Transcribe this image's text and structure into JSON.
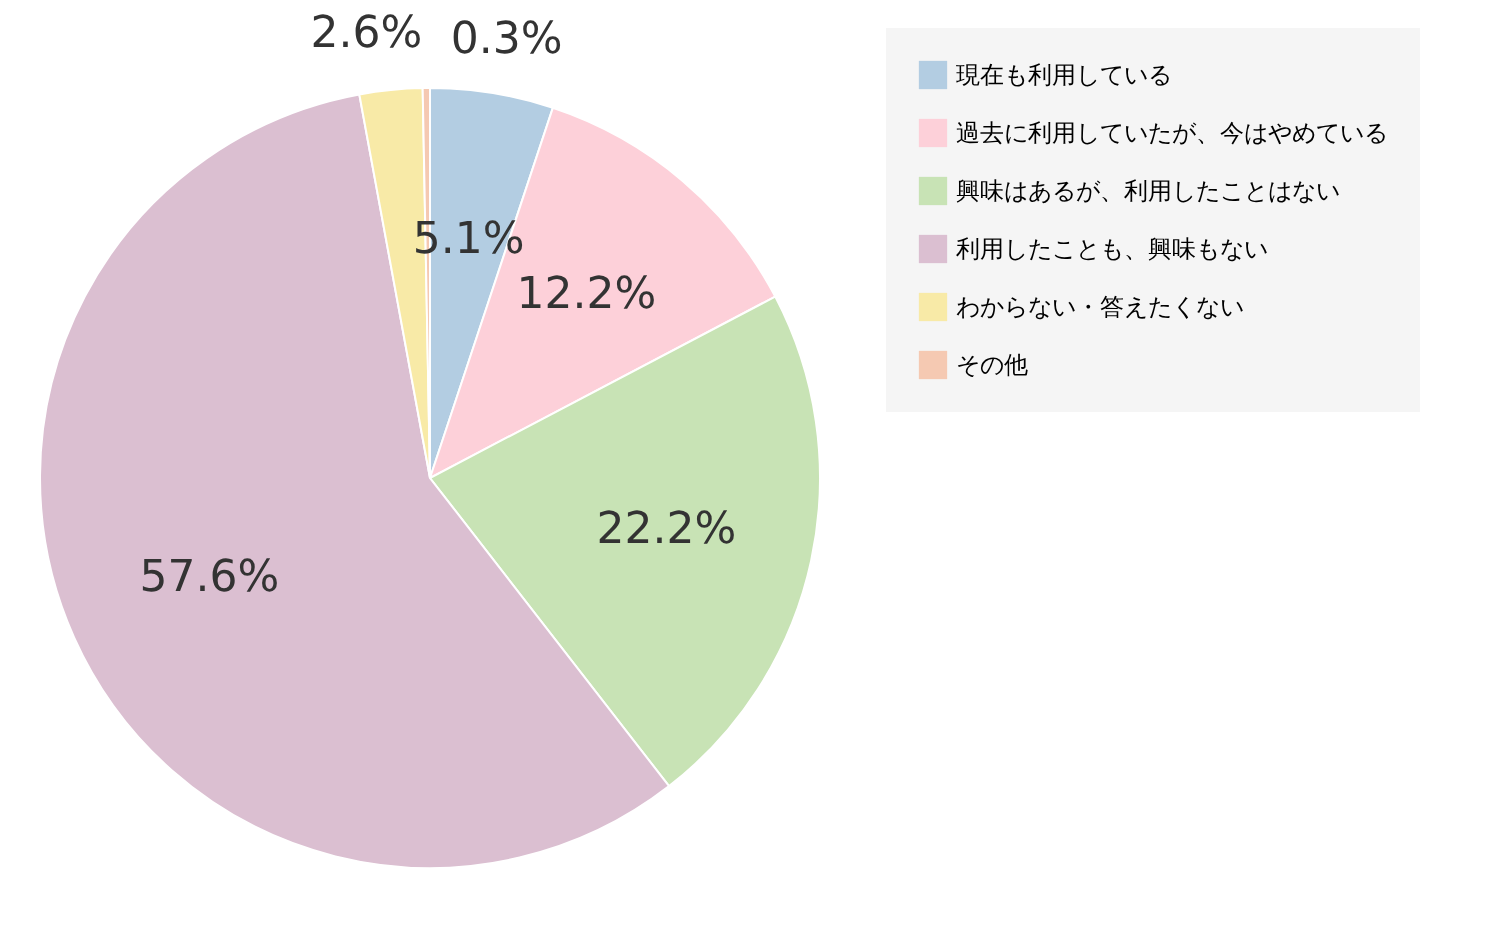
{
  "chart_data": {
    "type": "pie",
    "categories": [
      "現在も利用している",
      "過去に利用していたが、今はやめている",
      "興味はあるが、利用したことはない",
      "利用したことも、興味もない",
      "わからない・答えたくない",
      "その他"
    ],
    "values": [
      5.1,
      12.2,
      22.2,
      57.6,
      2.6,
      0.3
    ],
    "colors": [
      "#b3cde2",
      "#fdd0d9",
      "#c8e3b5",
      "#dbbfd1",
      "#f8eaa7",
      "#f5c9b2"
    ],
    "value_labels": [
      "5.1%",
      "12.2%",
      "22.2%",
      "57.6%",
      "2.6%",
      "0.3%"
    ],
    "legend": "right"
  }
}
